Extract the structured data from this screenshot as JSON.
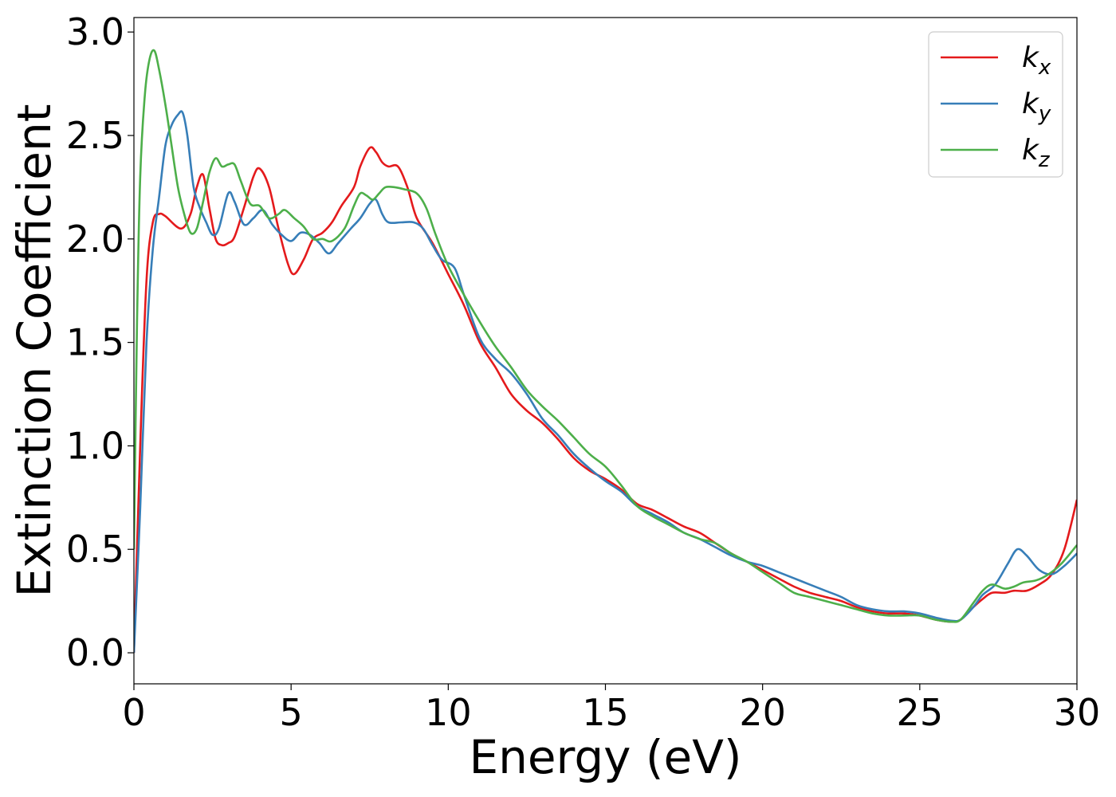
{
  "chart_data": {
    "type": "line",
    "xlabel": "Energy (eV)",
    "ylabel": "Extinction Coefficient",
    "xlim": [
      0,
      30
    ],
    "ylim": [
      -0.15,
      3.07
    ],
    "xticks": [
      0,
      5,
      10,
      15,
      20,
      25,
      30
    ],
    "yticks": [
      0.0,
      0.5,
      1.0,
      1.5,
      2.0,
      2.5,
      3.0
    ],
    "xtick_labels": [
      "0",
      "5",
      "10",
      "15",
      "20",
      "25",
      "30"
    ],
    "ytick_labels": [
      "0.0",
      "0.5",
      "1.0",
      "1.5",
      "2.0",
      "2.5",
      "3.0"
    ],
    "grid": false,
    "legend_position": "top-right",
    "series": [
      {
        "name": "k_x",
        "label_main": "k",
        "label_sub": "x",
        "color": "#e41a1c",
        "points": [
          [
            0,
            0
          ],
          [
            0.2,
            1.0
          ],
          [
            0.4,
            1.8
          ],
          [
            0.6,
            2.08
          ],
          [
            0.8,
            2.12
          ],
          [
            1.0,
            2.11
          ],
          [
            1.5,
            2.05
          ],
          [
            1.8,
            2.12
          ],
          [
            2.0,
            2.25
          ],
          [
            2.2,
            2.31
          ],
          [
            2.4,
            2.15
          ],
          [
            2.6,
            2.0
          ],
          [
            2.8,
            1.97
          ],
          [
            3.0,
            1.98
          ],
          [
            3.2,
            2.01
          ],
          [
            3.5,
            2.15
          ],
          [
            3.8,
            2.3
          ],
          [
            4.0,
            2.34
          ],
          [
            4.3,
            2.25
          ],
          [
            4.6,
            2.05
          ],
          [
            4.9,
            1.88
          ],
          [
            5.1,
            1.83
          ],
          [
            5.4,
            1.9
          ],
          [
            5.7,
            2.0
          ],
          [
            6.0,
            2.03
          ],
          [
            6.3,
            2.08
          ],
          [
            6.6,
            2.16
          ],
          [
            7.0,
            2.25
          ],
          [
            7.2,
            2.35
          ],
          [
            7.5,
            2.44
          ],
          [
            7.7,
            2.42
          ],
          [
            7.9,
            2.37
          ],
          [
            8.1,
            2.35
          ],
          [
            8.4,
            2.35
          ],
          [
            8.7,
            2.25
          ],
          [
            9.0,
            2.1
          ],
          [
            9.5,
            1.98
          ],
          [
            10.0,
            1.83
          ],
          [
            10.5,
            1.68
          ],
          [
            11.0,
            1.5
          ],
          [
            11.5,
            1.38
          ],
          [
            12.0,
            1.25
          ],
          [
            12.5,
            1.17
          ],
          [
            13.0,
            1.11
          ],
          [
            13.5,
            1.03
          ],
          [
            14.0,
            0.94
          ],
          [
            14.5,
            0.88
          ],
          [
            15.0,
            0.84
          ],
          [
            15.5,
            0.79
          ],
          [
            16.0,
            0.72
          ],
          [
            16.5,
            0.69
          ],
          [
            17.0,
            0.65
          ],
          [
            17.5,
            0.61
          ],
          [
            18.0,
            0.58
          ],
          [
            18.5,
            0.53
          ],
          [
            19.0,
            0.48
          ],
          [
            19.5,
            0.44
          ],
          [
            20.0,
            0.4
          ],
          [
            20.5,
            0.36
          ],
          [
            21.0,
            0.32
          ],
          [
            21.5,
            0.29
          ],
          [
            22.0,
            0.27
          ],
          [
            22.5,
            0.25
          ],
          [
            23.0,
            0.22
          ],
          [
            23.5,
            0.2
          ],
          [
            24.0,
            0.19
          ],
          [
            24.5,
            0.19
          ],
          [
            25.0,
            0.18
          ],
          [
            25.5,
            0.16
          ],
          [
            26.0,
            0.15
          ],
          [
            26.3,
            0.16
          ],
          [
            26.7,
            0.22
          ],
          [
            27.0,
            0.26
          ],
          [
            27.3,
            0.29
          ],
          [
            27.7,
            0.29
          ],
          [
            28.0,
            0.3
          ],
          [
            28.4,
            0.3
          ],
          [
            28.8,
            0.33
          ],
          [
            29.2,
            0.38
          ],
          [
            29.6,
            0.5
          ],
          [
            30.0,
            0.74
          ]
        ]
      },
      {
        "name": "k_y",
        "label_main": "k",
        "label_sub": "y",
        "color": "#377eb8",
        "points": [
          [
            0,
            0
          ],
          [
            0.2,
            0.7
          ],
          [
            0.4,
            1.5
          ],
          [
            0.6,
            1.95
          ],
          [
            0.8,
            2.2
          ],
          [
            1.0,
            2.45
          ],
          [
            1.2,
            2.55
          ],
          [
            1.4,
            2.6
          ],
          [
            1.55,
            2.61
          ],
          [
            1.7,
            2.5
          ],
          [
            1.9,
            2.25
          ],
          [
            2.1,
            2.15
          ],
          [
            2.3,
            2.08
          ],
          [
            2.5,
            2.02
          ],
          [
            2.7,
            2.05
          ],
          [
            3.0,
            2.22
          ],
          [
            3.2,
            2.18
          ],
          [
            3.5,
            2.07
          ],
          [
            3.8,
            2.1
          ],
          [
            4.1,
            2.14
          ],
          [
            4.4,
            2.07
          ],
          [
            4.7,
            2.02
          ],
          [
            5.0,
            1.99
          ],
          [
            5.3,
            2.03
          ],
          [
            5.6,
            2.02
          ],
          [
            5.9,
            1.98
          ],
          [
            6.2,
            1.93
          ],
          [
            6.5,
            1.98
          ],
          [
            6.9,
            2.05
          ],
          [
            7.2,
            2.1
          ],
          [
            7.5,
            2.17
          ],
          [
            7.7,
            2.19
          ],
          [
            7.9,
            2.12
          ],
          [
            8.1,
            2.08
          ],
          [
            8.5,
            2.08
          ],
          [
            8.9,
            2.08
          ],
          [
            9.2,
            2.05
          ],
          [
            9.5,
            1.97
          ],
          [
            9.8,
            1.9
          ],
          [
            10.2,
            1.86
          ],
          [
            10.5,
            1.73
          ],
          [
            11.0,
            1.52
          ],
          [
            11.5,
            1.42
          ],
          [
            12.0,
            1.35
          ],
          [
            12.5,
            1.25
          ],
          [
            13.0,
            1.13
          ],
          [
            13.5,
            1.05
          ],
          [
            14.0,
            0.96
          ],
          [
            14.5,
            0.89
          ],
          [
            15.0,
            0.83
          ],
          [
            15.5,
            0.78
          ],
          [
            16.0,
            0.71
          ],
          [
            16.5,
            0.67
          ],
          [
            17.0,
            0.63
          ],
          [
            17.5,
            0.58
          ],
          [
            18.0,
            0.55
          ],
          [
            18.5,
            0.51
          ],
          [
            19.0,
            0.47
          ],
          [
            19.5,
            0.44
          ],
          [
            20.0,
            0.42
          ],
          [
            20.5,
            0.39
          ],
          [
            21.0,
            0.36
          ],
          [
            21.5,
            0.33
          ],
          [
            22.0,
            0.3
          ],
          [
            22.5,
            0.27
          ],
          [
            23.0,
            0.23
          ],
          [
            23.5,
            0.21
          ],
          [
            24.0,
            0.2
          ],
          [
            24.5,
            0.2
          ],
          [
            25.0,
            0.19
          ],
          [
            25.5,
            0.17
          ],
          [
            26.0,
            0.155
          ],
          [
            26.3,
            0.16
          ],
          [
            26.7,
            0.22
          ],
          [
            27.0,
            0.28
          ],
          [
            27.4,
            0.33
          ],
          [
            27.8,
            0.43
          ],
          [
            28.1,
            0.5
          ],
          [
            28.4,
            0.47
          ],
          [
            28.8,
            0.4
          ],
          [
            29.2,
            0.38
          ],
          [
            29.6,
            0.42
          ],
          [
            30.0,
            0.48
          ]
        ]
      },
      {
        "name": "k_z",
        "label_main": "k",
        "label_sub": "z",
        "color": "#4daf4a",
        "points": [
          [
            0,
            0.5
          ],
          [
            0.1,
            1.6
          ],
          [
            0.2,
            2.3
          ],
          [
            0.35,
            2.7
          ],
          [
            0.5,
            2.87
          ],
          [
            0.65,
            2.91
          ],
          [
            0.8,
            2.82
          ],
          [
            1.0,
            2.65
          ],
          [
            1.2,
            2.45
          ],
          [
            1.4,
            2.25
          ],
          [
            1.6,
            2.12
          ],
          [
            1.8,
            2.03
          ],
          [
            2.0,
            2.05
          ],
          [
            2.2,
            2.18
          ],
          [
            2.4,
            2.32
          ],
          [
            2.6,
            2.39
          ],
          [
            2.8,
            2.35
          ],
          [
            3.0,
            2.36
          ],
          [
            3.2,
            2.36
          ],
          [
            3.4,
            2.28
          ],
          [
            3.7,
            2.17
          ],
          [
            4.0,
            2.16
          ],
          [
            4.3,
            2.1
          ],
          [
            4.6,
            2.12
          ],
          [
            4.8,
            2.14
          ],
          [
            5.1,
            2.1
          ],
          [
            5.4,
            2.06
          ],
          [
            5.7,
            2.0
          ],
          [
            6.0,
            2.0
          ],
          [
            6.3,
            1.99
          ],
          [
            6.7,
            2.05
          ],
          [
            7.0,
            2.16
          ],
          [
            7.2,
            2.22
          ],
          [
            7.4,
            2.21
          ],
          [
            7.6,
            2.19
          ],
          [
            7.8,
            2.22
          ],
          [
            8.0,
            2.25
          ],
          [
            8.3,
            2.25
          ],
          [
            8.6,
            2.24
          ],
          [
            9.0,
            2.22
          ],
          [
            9.3,
            2.15
          ],
          [
            9.6,
            2.02
          ],
          [
            10.0,
            1.87
          ],
          [
            10.5,
            1.73
          ],
          [
            11.0,
            1.6
          ],
          [
            11.5,
            1.48
          ],
          [
            12.0,
            1.38
          ],
          [
            12.5,
            1.27
          ],
          [
            13.0,
            1.19
          ],
          [
            13.5,
            1.12
          ],
          [
            14.0,
            1.04
          ],
          [
            14.5,
            0.96
          ],
          [
            15.0,
            0.9
          ],
          [
            15.5,
            0.81
          ],
          [
            16.0,
            0.71
          ],
          [
            16.5,
            0.66
          ],
          [
            17.0,
            0.62
          ],
          [
            17.5,
            0.58
          ],
          [
            18.0,
            0.55
          ],
          [
            18.5,
            0.53
          ],
          [
            19.0,
            0.48
          ],
          [
            19.5,
            0.44
          ],
          [
            20.0,
            0.39
          ],
          [
            20.5,
            0.34
          ],
          [
            21.0,
            0.29
          ],
          [
            21.5,
            0.27
          ],
          [
            22.0,
            0.25
          ],
          [
            22.5,
            0.23
          ],
          [
            23.0,
            0.21
          ],
          [
            23.5,
            0.19
          ],
          [
            24.0,
            0.18
          ],
          [
            24.5,
            0.18
          ],
          [
            25.0,
            0.18
          ],
          [
            25.5,
            0.16
          ],
          [
            26.0,
            0.15
          ],
          [
            26.3,
            0.16
          ],
          [
            26.7,
            0.24
          ],
          [
            27.0,
            0.3
          ],
          [
            27.3,
            0.33
          ],
          [
            27.7,
            0.31
          ],
          [
            28.0,
            0.32
          ],
          [
            28.3,
            0.34
          ],
          [
            28.7,
            0.35
          ],
          [
            29.1,
            0.38
          ],
          [
            29.5,
            0.43
          ],
          [
            30.0,
            0.52
          ]
        ]
      }
    ]
  }
}
